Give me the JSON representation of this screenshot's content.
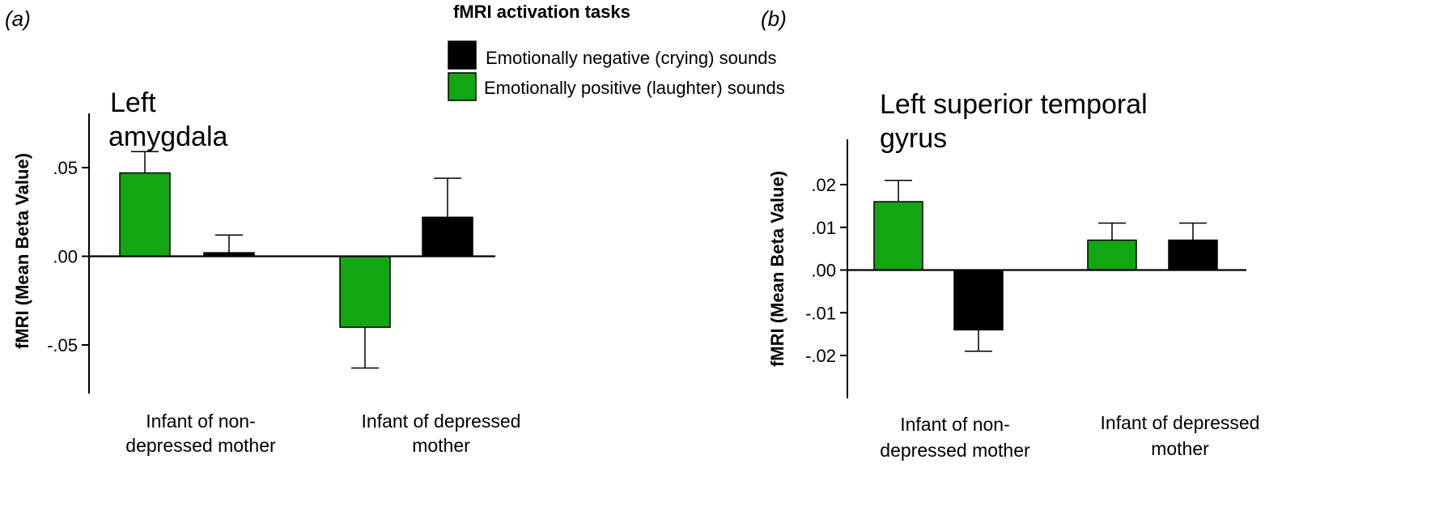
{
  "colors": {
    "positive": "#13a613",
    "negative": "#000000",
    "axis": "#000000",
    "errorbar": "#000000"
  },
  "legend": {
    "title": "fMRI activation tasks",
    "items": [
      {
        "label": "Emotionally negative (crying) sounds",
        "color": "#000000"
      },
      {
        "label": "Emotionally positive (laughter) sounds",
        "color": "#13a613"
      }
    ]
  },
  "chart_data": [
    {
      "panel": "(a)",
      "panel_letter": "a",
      "type": "bar",
      "title": "Left amygdala",
      "title_lines": [
        "Left",
        "amygdala"
      ],
      "ylabel": "fMRI (Mean Beta Value)",
      "ylim": [
        -0.08,
        0.08
      ],
      "yticks": [
        0.05,
        0.0,
        -0.05
      ],
      "ytick_labels": [
        ".05",
        ".00",
        "-.05"
      ],
      "categories": [
        "Infant of non-depressed mother",
        "Infant of depressed mother"
      ],
      "category_lines": [
        [
          "Infant of non-",
          "depressed mother"
        ],
        [
          "Infant of depressed",
          "mother"
        ]
      ],
      "series": [
        {
          "name": "Emotionally positive (laughter) sounds",
          "color": "#13a613",
          "values": [
            0.047,
            -0.04
          ],
          "errors": [
            0.012,
            0.023
          ]
        },
        {
          "name": "Emotionally negative (crying) sounds",
          "color": "#000000",
          "values": [
            0.002,
            0.022
          ],
          "errors": [
            0.01,
            0.022
          ]
        }
      ]
    },
    {
      "panel": "(b)",
      "panel_letter": "b",
      "type": "bar",
      "title": "Left superior temporal gyrus",
      "title_lines": [
        "Left superior temporal",
        "gyrus"
      ],
      "ylabel": "fMRI (Mean Beta Value)",
      "ylim": [
        -0.03,
        0.03
      ],
      "yticks": [
        0.02,
        0.01,
        0.0,
        -0.01,
        -0.02
      ],
      "ytick_labels": [
        ".02",
        ".01",
        ".00",
        "-.01",
        "-.02"
      ],
      "categories": [
        "Infant of non-depressed mother",
        "Infant of depressed mother"
      ],
      "category_lines": [
        [
          "Infant of non-",
          "depressed mother"
        ],
        [
          "Infant of depressed",
          "mother"
        ]
      ],
      "series": [
        {
          "name": "Emotionally positive (laughter) sounds",
          "color": "#13a613",
          "values": [
            0.016,
            0.007
          ],
          "errors": [
            0.005,
            0.004
          ]
        },
        {
          "name": "Emotionally negative (crying) sounds",
          "color": "#000000",
          "values": [
            -0.014,
            0.007
          ],
          "errors": [
            0.005,
            0.004
          ]
        }
      ]
    }
  ]
}
